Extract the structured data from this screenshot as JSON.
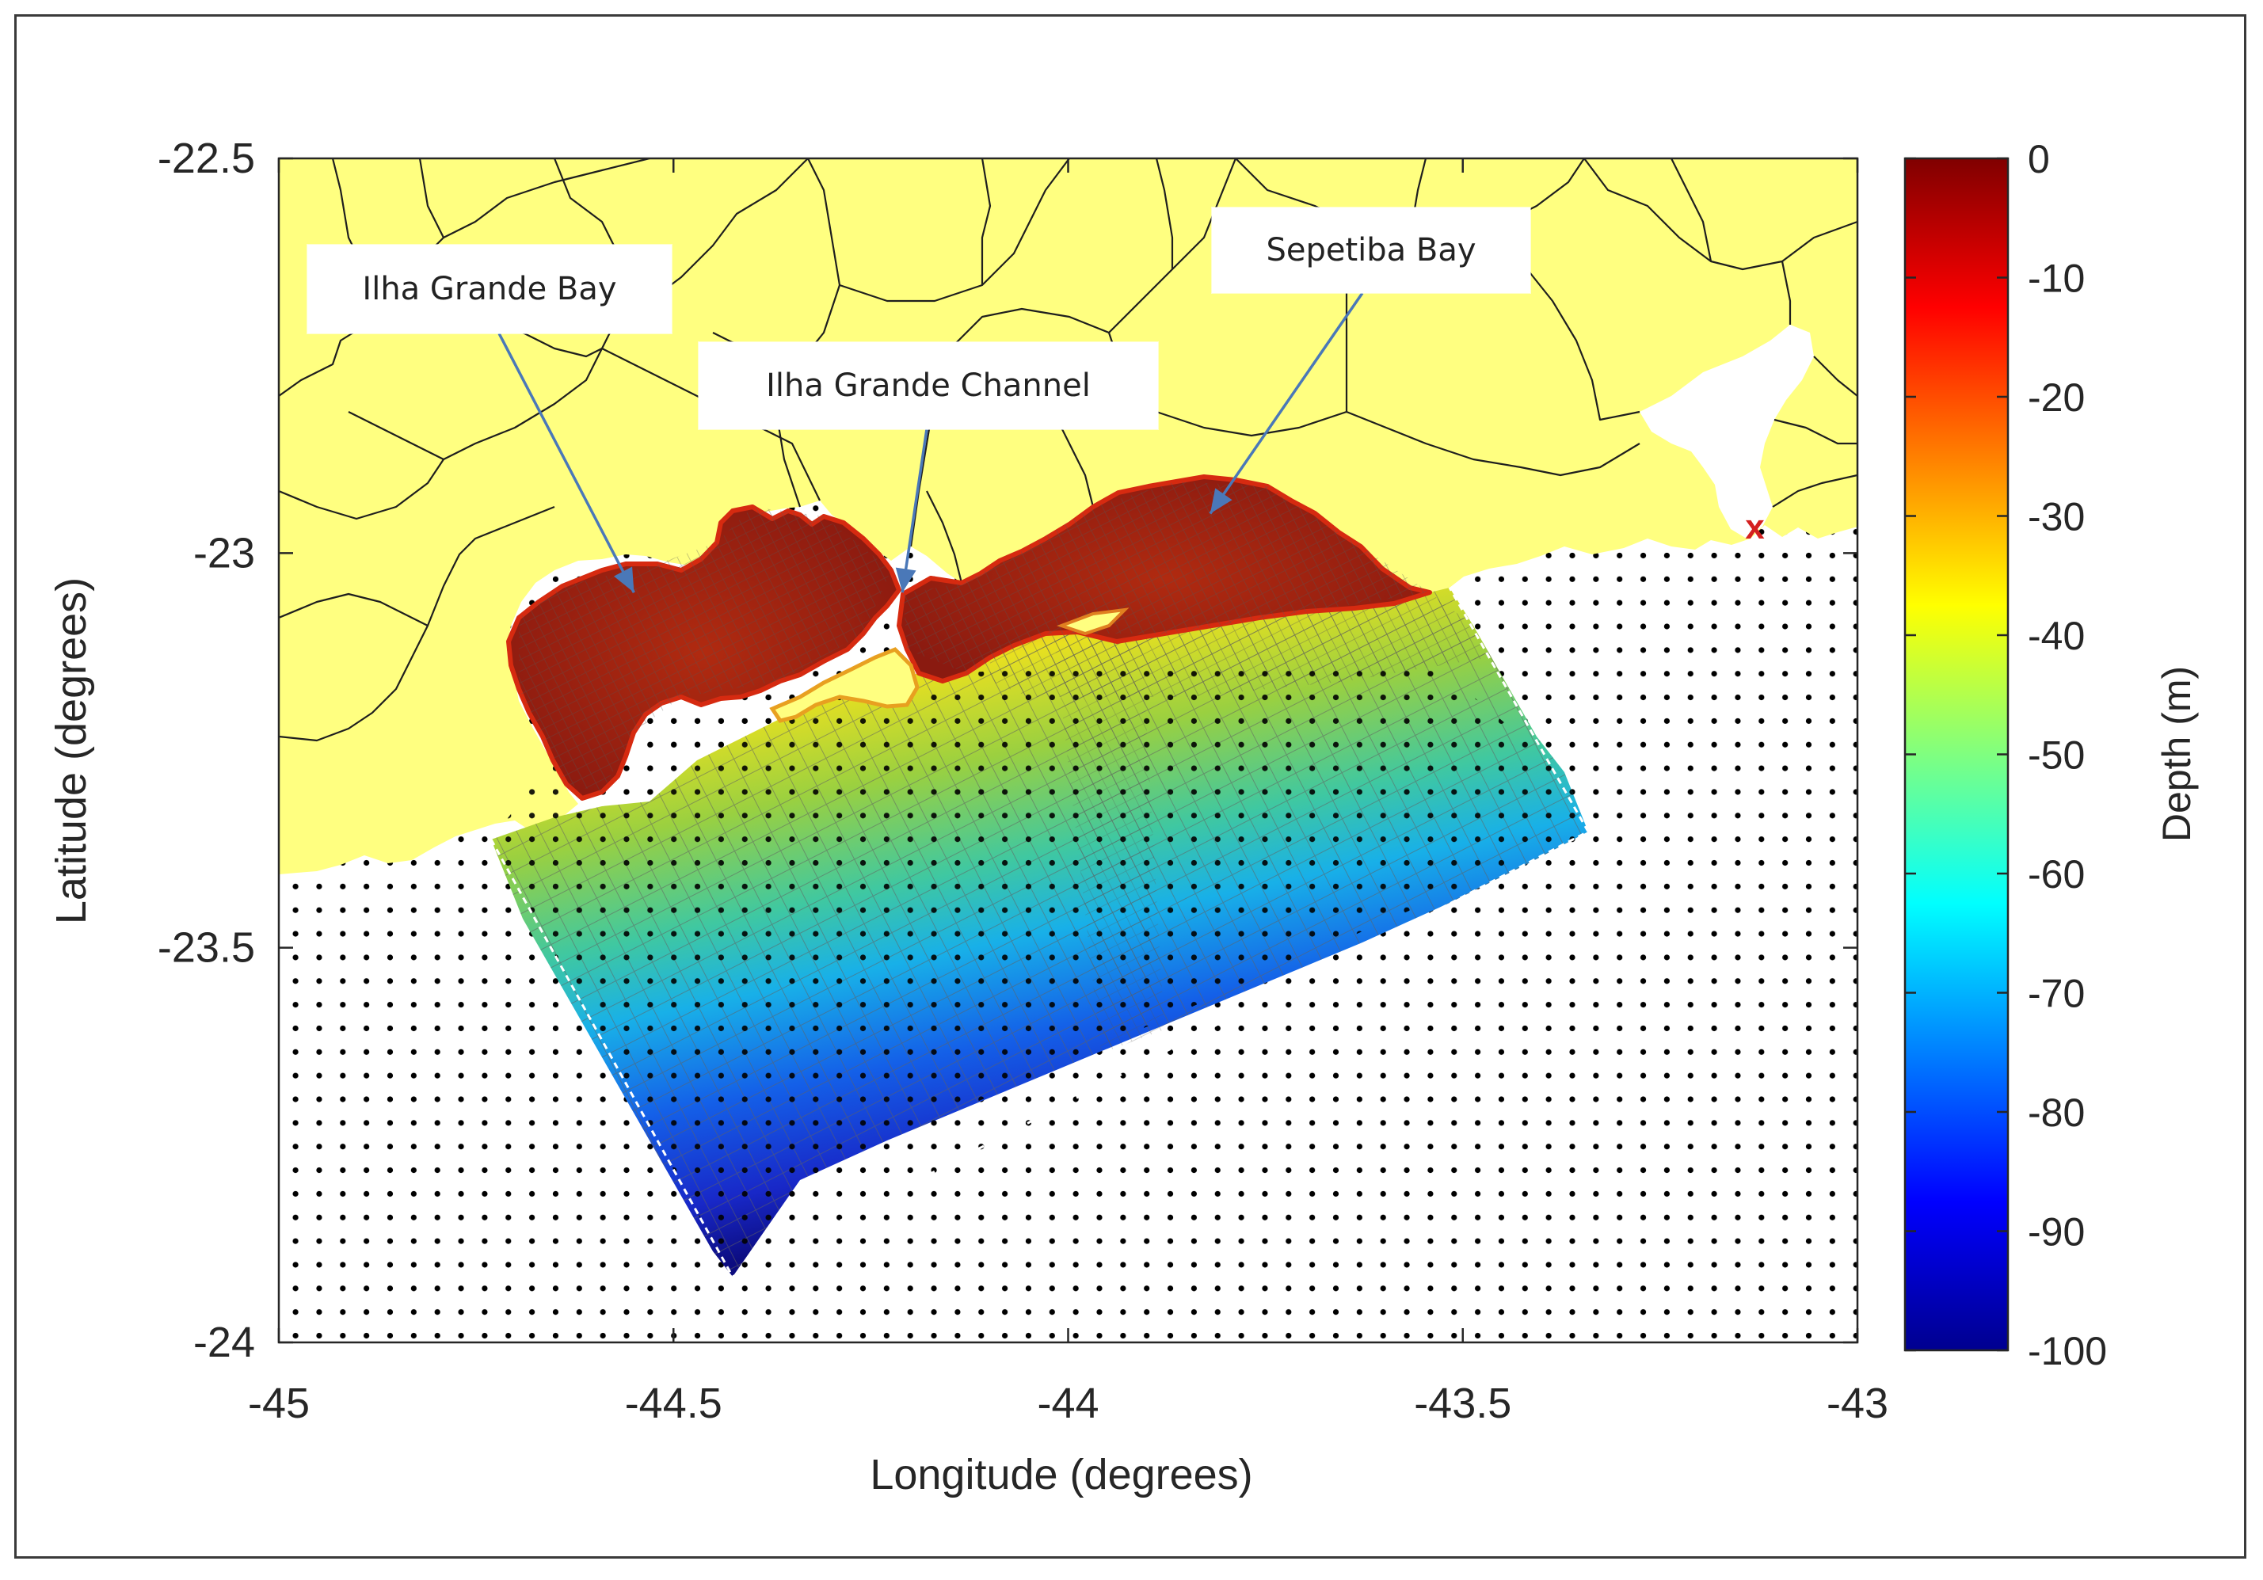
{
  "map": {
    "xlabel": "Longitude (degrees)",
    "ylabel": "Latitude (degrees)",
    "xlim": [
      -45,
      -43
    ],
    "ylim": [
      -24,
      -22.5
    ],
    "x_ticks": [
      {
        "value": -45,
        "label": "-45"
      },
      {
        "value": -44.5,
        "label": "-44.5"
      },
      {
        "value": -44,
        "label": "-44"
      },
      {
        "value": -43.5,
        "label": "-43.5"
      },
      {
        "value": -43,
        "label": "-43"
      }
    ],
    "y_ticks": [
      {
        "value": -22.5,
        "label": "-22.5"
      },
      {
        "value": -23,
        "label": "-23"
      },
      {
        "value": -23.5,
        "label": "-23.5"
      },
      {
        "value": -24,
        "label": "-24"
      }
    ],
    "land_color": "#ffff80",
    "ocean_color": "#ffffff",
    "marker": {
      "label": "x",
      "lon": -43.13,
      "lat": -22.97,
      "color": "#d42020"
    }
  },
  "colorbar": {
    "label": "Depth (m)",
    "range": [
      -100,
      0
    ],
    "ticks": [
      "0",
      "-10",
      "-20",
      "-30",
      "-40",
      "-50",
      "-60",
      "-70",
      "-80",
      "-90",
      "-100"
    ],
    "colormap": "jet"
  },
  "annotations": [
    {
      "label": "Ilha Grande Bay",
      "target_lon": -44.55,
      "target_lat": -23.05
    },
    {
      "label": "Ilha Grande Channel",
      "target_lon": -44.21,
      "target_lat": -23.05
    },
    {
      "label": "Sepetiba Bay",
      "target_lon": -43.82,
      "target_lat": -22.95
    }
  ]
}
